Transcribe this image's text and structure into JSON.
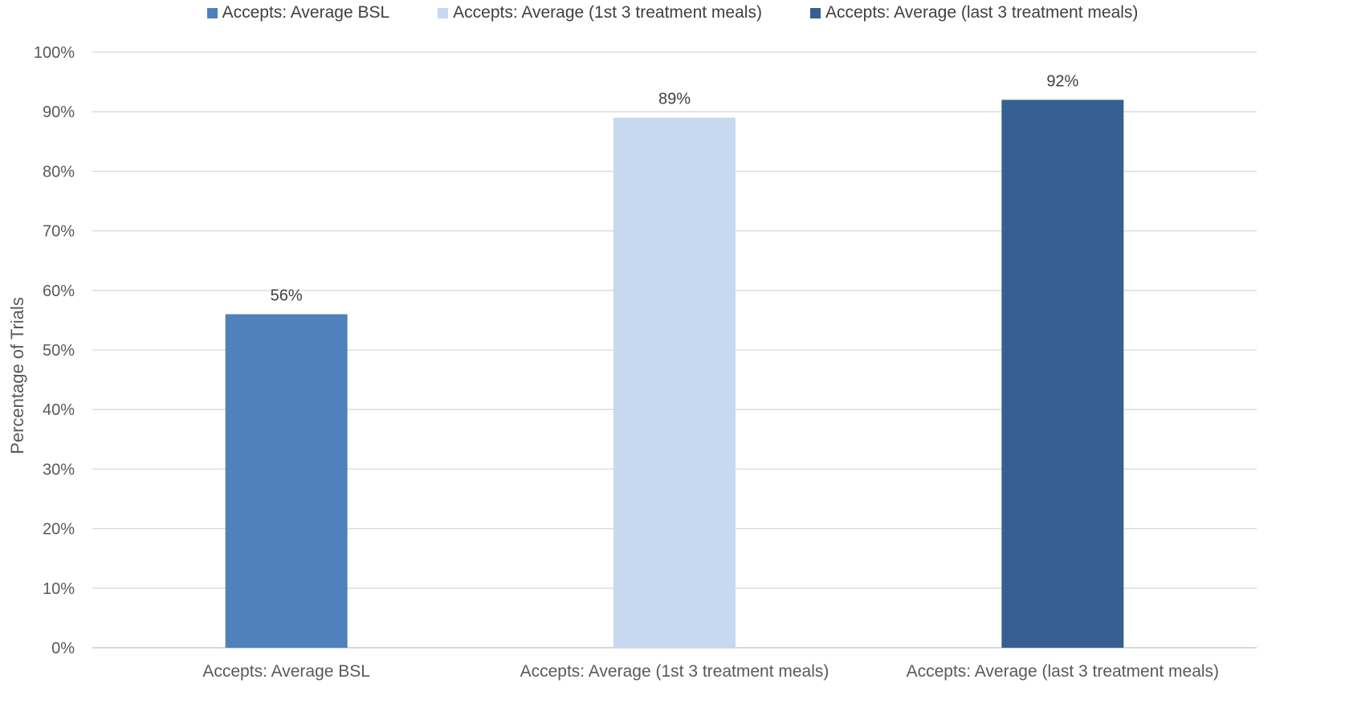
{
  "chart_data": {
    "type": "bar",
    "title": "",
    "xlabel": "",
    "ylabel": "Percentage of Trials",
    "ylim": [
      0,
      100
    ],
    "yticks": [
      "0%",
      "10%",
      "20%",
      "30%",
      "40%",
      "50%",
      "60%",
      "70%",
      "80%",
      "90%",
      "100%"
    ],
    "grid": true,
    "legend_position": "top",
    "categories": [
      "Accepts: Average BSL",
      "Accepts: Average (1st 3 treatment meals)",
      "Accepts: Average (last 3 treatment meals)"
    ],
    "values": [
      56,
      89,
      92
    ],
    "data_labels": [
      "56%",
      "89%",
      "92%"
    ],
    "series": [
      {
        "name": "Accepts: Average BSL",
        "color": "#4F81BD"
      },
      {
        "name": "Accepts: Average (1st 3 treatment meals)",
        "color": "#C6D9F0"
      },
      {
        "name": "Accepts: Average (last 3 treatment meals)",
        "color": "#366092"
      }
    ]
  }
}
